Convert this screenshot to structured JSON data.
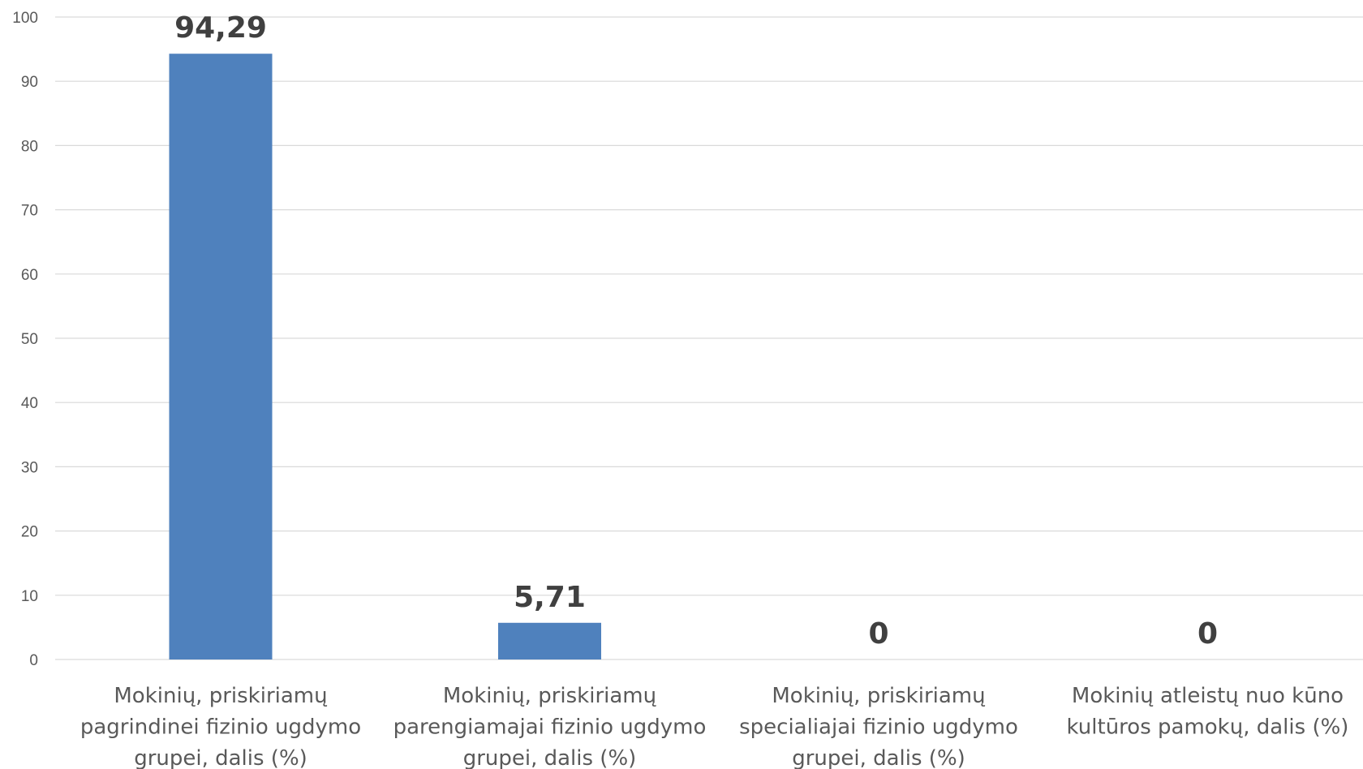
{
  "chart_data": {
    "type": "bar",
    "categories": [
      [
        "Mokinių, priskiriamų",
        "pagrindinei fizinio ugdymo",
        "grupei, dalis (%)"
      ],
      [
        "Mokinių, priskiriamų",
        "parengiamajai fizinio ugdymo",
        "grupei, dalis (%)"
      ],
      [
        "Mokinių, priskiriamų",
        "specialiajai fizinio ugdymo",
        "grupei, dalis (%)"
      ],
      [
        "Mokinių atleistų nuo kūno",
        "kultūros pamokų, dalis (%)"
      ]
    ],
    "values": [
      94.29,
      5.71,
      0,
      0
    ],
    "data_labels": [
      "94,29",
      "5,71",
      "0",
      "0"
    ],
    "yticks": [
      0,
      10,
      20,
      30,
      40,
      50,
      60,
      70,
      80,
      90,
      100
    ],
    "ylim": [
      0,
      100
    ],
    "title": "",
    "xlabel": "",
    "ylabel": "",
    "grid": true,
    "bar_color": "#4f81bd"
  }
}
